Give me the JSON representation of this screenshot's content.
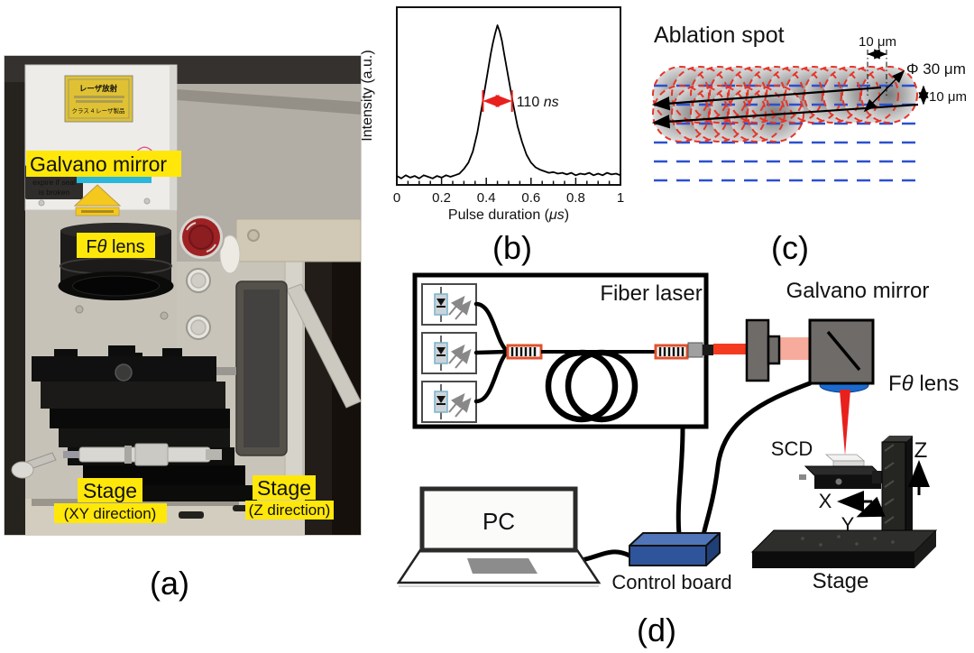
{
  "figure": {
    "panel_a": {
      "caption": "(a)",
      "labels": {
        "galvano_mirror": "Galvano mirror",
        "f_theta_prefix": "F",
        "f_theta_theta": "θ",
        "f_theta_suffix": " lens",
        "stage_xy_title": "Stage",
        "stage_xy_sub": "(XY direction)",
        "stage_z_title": "Stage",
        "stage_z_sub": "(Z direction)",
        "warranty_line1": "warranty",
        "warranty_line2": "expire if seal",
        "warranty_line3": "is broken",
        "sticker_title": "レーザ放射",
        "sticker_class": "クラス 4 レーザ製品"
      }
    },
    "panel_b": {
      "caption": "(b)"
    },
    "panel_c": {
      "caption": "(c)",
      "title": "Ablation spot",
      "dim_spacing": "10 μm",
      "dim_diameter": "Φ 30 μm",
      "dim_line_pitch": "10 μm",
      "geometry": {
        "spot_diameter_um": 30,
        "spot_spacing_um": 10,
        "line_spacing_um": 10
      }
    },
    "panel_d": {
      "caption": "(d)",
      "labels": {
        "fiber_laser": "Fiber laser",
        "galvano_mirror": "Galvano mirror",
        "f_theta_prefix": "F",
        "f_theta_theta": "θ",
        "f_theta_suffix": " lens",
        "scd": "SCD",
        "pc": "PC",
        "control_board": "Control board",
        "stage": "Stage",
        "axis_x": "X",
        "axis_y": "Y",
        "axis_z": "Z"
      }
    }
  },
  "colors": {
    "highlight_yellow": "#ffe70a",
    "annotation_red": "#e8211d",
    "beam_red": "#f43b20",
    "beam_pale": "#f7ab9c",
    "scanline_blue": "#2d50cf",
    "spot_outline_red": "#e63529",
    "board_blue_top": "#4f74b8",
    "board_blue_front": "#2e549c",
    "lens_blue": "#1a6bd0"
  },
  "chart_data": {
    "type": "line",
    "title": "",
    "xlabel": "Pulse duration (μs)",
    "xlabel_prefix": "Pulse duration (",
    "xlabel_unit": "μs",
    "xlabel_suffix": ")",
    "ylabel": "Intensity (a.u.)",
    "xlim": [
      0,
      1
    ],
    "ylim": [
      0,
      1.15
    ],
    "xticks": [
      0,
      0.2,
      0.4,
      0.6,
      0.8,
      1
    ],
    "xtick_labels": [
      "0",
      "0.2",
      "0.4",
      "0.6",
      "0.8",
      "1"
    ],
    "grid": false,
    "legend": false,
    "annotation": {
      "label": "110",
      "unit": "ns",
      "x1": 0.385,
      "x2": 0.515,
      "y": 0.52,
      "color": "#e8211d"
    },
    "series": [
      {
        "name": "pulse waveform",
        "x": [
          0,
          0.02,
          0.04,
          0.06,
          0.08,
          0.1,
          0.12,
          0.14,
          0.16,
          0.18,
          0.2,
          0.22,
          0.24,
          0.26,
          0.28,
          0.3,
          0.32,
          0.34,
          0.36,
          0.38,
          0.4,
          0.42,
          0.43,
          0.44,
          0.45,
          0.46,
          0.47,
          0.48,
          0.5,
          0.52,
          0.54,
          0.56,
          0.58,
          0.6,
          0.62,
          0.64,
          0.66,
          0.68,
          0.7,
          0.72,
          0.74,
          0.76,
          0.78,
          0.8,
          0.82,
          0.84,
          0.86,
          0.88,
          0.9,
          0.92,
          0.94,
          0.96,
          0.98,
          1.0
        ],
        "y": [
          0.045,
          0.03,
          0.05,
          0.035,
          0.045,
          0.03,
          0.05,
          0.04,
          0.03,
          0.045,
          0.035,
          0.05,
          0.04,
          0.05,
          0.06,
          0.09,
          0.13,
          0.2,
          0.32,
          0.48,
          0.65,
          0.82,
          0.89,
          0.95,
          1.0,
          0.96,
          0.9,
          0.82,
          0.66,
          0.5,
          0.36,
          0.26,
          0.18,
          0.13,
          0.1,
          0.085,
          0.075,
          0.065,
          0.07,
          0.06,
          0.065,
          0.055,
          0.065,
          0.05,
          0.06,
          0.055,
          0.065,
          0.05,
          0.06,
          0.05,
          0.065,
          0.055,
          0.06,
          0.05
        ]
      }
    ]
  }
}
